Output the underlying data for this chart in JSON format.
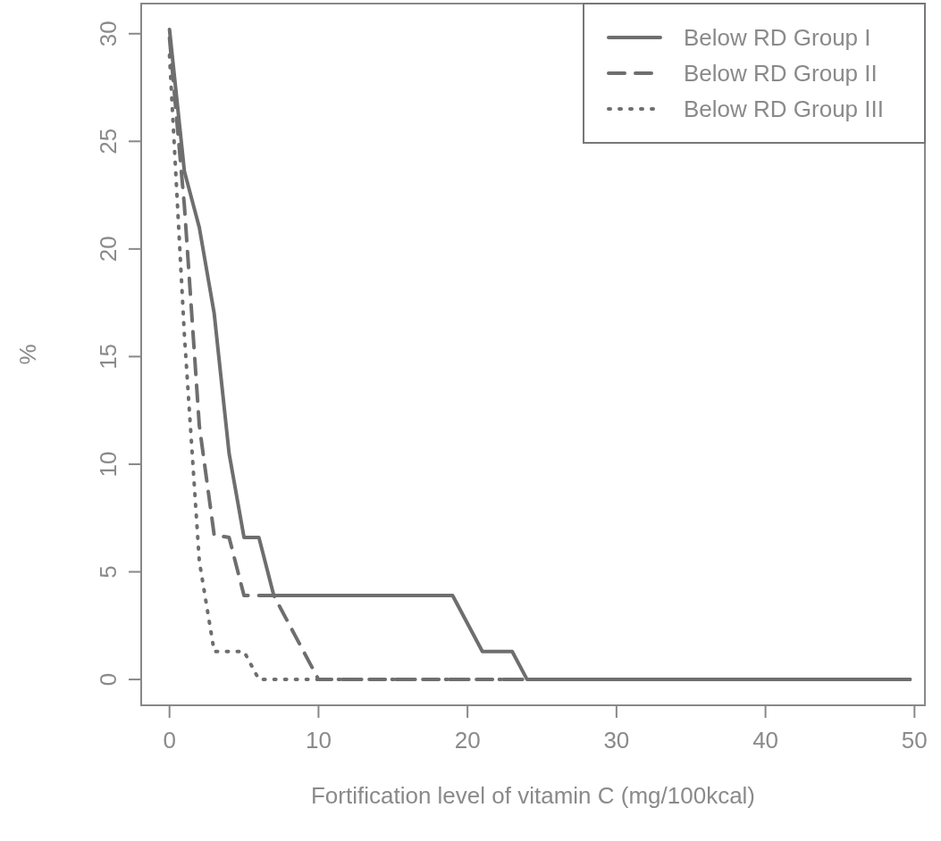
{
  "chart_data": {
    "type": "line",
    "xlabel": "Fortification level of vitamin C (mg/100kcal)",
    "ylabel": "%",
    "xlim": [
      -1.9,
      50.7
    ],
    "ylim": [
      -1.2,
      31.4
    ],
    "xticks": [
      0,
      10,
      20,
      30,
      40,
      50
    ],
    "yticks": [
      0,
      5,
      10,
      15,
      20,
      25,
      30
    ],
    "grid": false,
    "legend": "top right",
    "marker": "none",
    "series": [
      {
        "name": "Below RD Group I",
        "color": "#6e6e6e",
        "line_style": "solid",
        "x": [
          0,
          1,
          2,
          3,
          4,
          5,
          6,
          7,
          19,
          21,
          23,
          24,
          49.7
        ],
        "values": [
          30.2,
          23.6,
          21,
          17,
          10.5,
          6.6,
          6.6,
          3.9,
          3.9,
          1.3,
          1.3,
          0,
          0
        ]
      },
      {
        "name": "Below RD Group II",
        "color": "#6e6e6e",
        "line_style": "dashed",
        "x": [
          0,
          1,
          2,
          3,
          4,
          5,
          7,
          10,
          49.7
        ],
        "values": [
          29.8,
          22,
          11.8,
          6.7,
          6.6,
          3.9,
          3.9,
          0,
          0
        ]
      },
      {
        "name": "Below RD Group III",
        "color": "#6e6e6e",
        "line_style": "dotted",
        "x": [
          0,
          1,
          2,
          3,
          5,
          6,
          49.7
        ],
        "values": [
          29,
          16,
          5.5,
          1.3,
          1.3,
          0,
          0
        ]
      }
    ]
  }
}
